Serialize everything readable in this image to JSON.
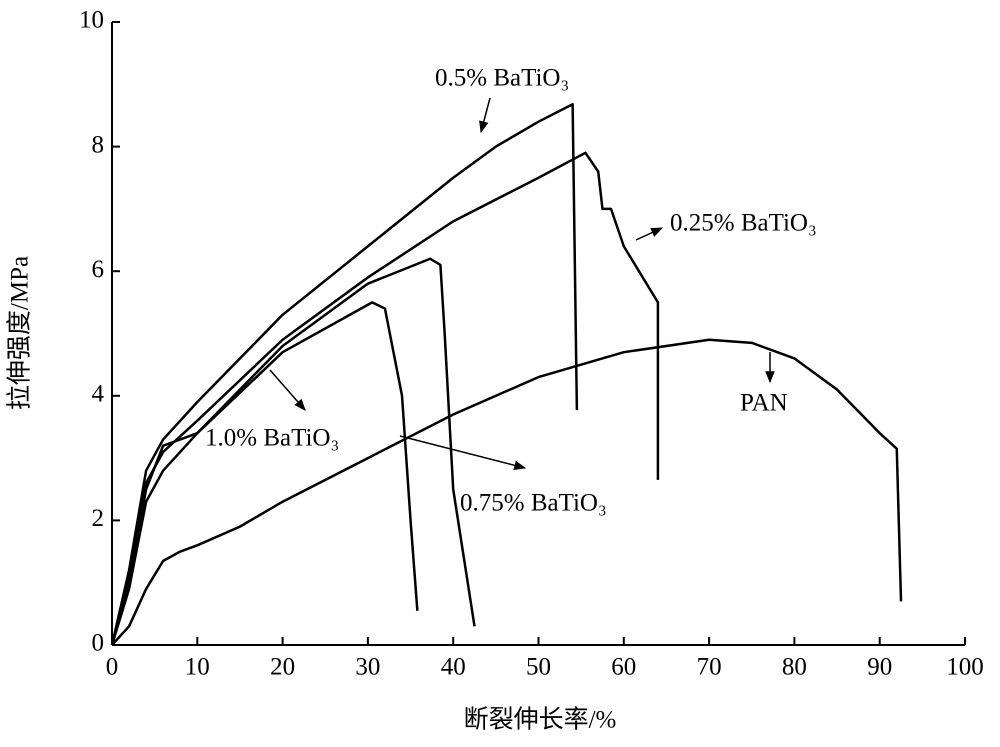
{
  "chart_data": {
    "type": "line",
    "x_label": "断裂伸长率/%",
    "y_label": "拉伸强度/MPa",
    "xlim": [
      0,
      100
    ],
    "xticks": [
      0,
      10,
      20,
      30,
      40,
      50,
      60,
      70,
      80,
      90,
      100
    ],
    "ylim": [
      0,
      10
    ],
    "yticks": [
      0,
      2,
      4,
      6,
      8,
      10
    ],
    "series": [
      {
        "name": "0.5% BaTiO₃",
        "color": "#000000",
        "x": [
          0,
          2,
          4,
          6,
          10,
          20,
          30,
          35,
          40,
          45,
          50,
          54,
          54.5
        ],
        "values": [
          0,
          1.2,
          2.8,
          3.3,
          3.9,
          5.3,
          6.4,
          6.95,
          7.5,
          8.0,
          8.4,
          8.68,
          3.77
        ]
      },
      {
        "name": "0.25% BaTiO₃",
        "color": "#000000",
        "x": [
          0,
          2,
          4,
          6,
          10,
          20,
          30,
          40,
          50,
          55.5,
          57,
          57.5,
          58.5,
          60,
          64,
          64
        ],
        "values": [
          0,
          1.1,
          2.6,
          3.1,
          3.6,
          4.9,
          5.9,
          6.8,
          7.5,
          7.9,
          7.6,
          7.0,
          7.0,
          6.4,
          5.5,
          2.65
        ]
      },
      {
        "name": "1.0% BaTiO₃",
        "color": "#000000",
        "x": [
          0,
          2,
          4,
          6,
          10,
          20,
          30.5,
          32,
          34,
          35,
          35.8
        ],
        "values": [
          0,
          1.0,
          2.5,
          3.2,
          3.4,
          4.7,
          5.5,
          5.4,
          4.0,
          2.0,
          0.55
        ]
      },
      {
        "name": "0.75% BaTiO₃",
        "color": "#000000",
        "x": [
          0,
          2,
          4,
          6,
          10,
          20,
          30,
          37.3,
          38.5,
          39,
          40,
          42.5
        ],
        "values": [
          0,
          0.9,
          2.3,
          2.8,
          3.4,
          4.8,
          5.8,
          6.2,
          6.1,
          5.0,
          2.5,
          0.3
        ]
      },
      {
        "name": "PAN",
        "color": "#000000",
        "x": [
          0,
          2,
          4,
          6,
          8,
          10,
          15,
          20,
          30,
          40,
          50,
          60,
          70,
          75,
          80,
          85,
          90,
          92,
          92.5
        ],
        "values": [
          0,
          0.3,
          0.9,
          1.35,
          1.5,
          1.6,
          1.9,
          2.3,
          3.0,
          3.7,
          4.3,
          4.7,
          4.9,
          4.85,
          4.6,
          4.1,
          3.4,
          3.15,
          0.7
        ]
      }
    ]
  }
}
